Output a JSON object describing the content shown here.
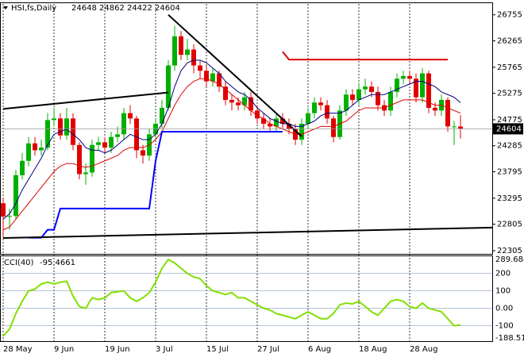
{
  "chart_data": {
    "type": "candlestick",
    "symbol": "HSI,fs,Daily",
    "header_ohlc": [
      24648,
      24862,
      24422,
      24604
    ],
    "categories": [
      "28 May",
      null,
      null,
      null,
      null,
      null,
      null,
      null,
      "9 Jun",
      null,
      null,
      null,
      null,
      null,
      null,
      null,
      "19 Jun",
      null,
      null,
      null,
      null,
      null,
      null,
      null,
      "3 Jul",
      null,
      null,
      null,
      null,
      null,
      null,
      null,
      "15 Jul",
      null,
      null,
      null,
      null,
      null,
      null,
      null,
      "27 Jul",
      null,
      null,
      null,
      null,
      null,
      null,
      null,
      "6 Aug",
      null,
      null,
      null,
      null,
      null,
      null,
      null,
      "18 Aug",
      null,
      null,
      null,
      null,
      null,
      null,
      null,
      "28 Aug",
      null,
      null,
      null,
      null,
      null,
      null,
      null,
      null
    ],
    "open": [
      23200,
      22950,
      22960,
      23730,
      24000,
      24330,
      24200,
      24250,
      24770,
      24800,
      24480,
      24800,
      24300,
      23750,
      23780,
      24300,
      24350,
      24250,
      24450,
      24500,
      24900,
      24800,
      24200,
      24100,
      24500,
      24700,
      25000,
      25800,
      26350,
      26000,
      26100,
      25800,
      25700,
      25500,
      25650,
      25400,
      25150,
      25100,
      25050,
      25200,
      24950,
      24800,
      24700,
      24650,
      24800,
      24700,
      24600,
      24400,
      24700,
      24900,
      25100,
      25050,
      24800,
      24450,
      24950,
      25250,
      25150,
      25350,
      25400,
      25300,
      25050,
      24950,
      25300,
      25550,
      25600,
      25550,
      25200,
      25650,
      25000,
      24950,
      25150,
      24650,
      24648
    ],
    "high": [
      23300,
      23100,
      23830,
      24150,
      24450,
      24450,
      24400,
      24900,
      25000,
      24900,
      25000,
      24900,
      24350,
      23950,
      24400,
      24450,
      24450,
      24550,
      24650,
      25000,
      25050,
      24850,
      24300,
      24600,
      24800,
      25150,
      25900,
      26550,
      26450,
      26300,
      26200,
      25900,
      25800,
      25750,
      25700,
      25500,
      25250,
      25200,
      25300,
      25300,
      25050,
      24900,
      24800,
      24900,
      24900,
      24800,
      24700,
      24800,
      25000,
      25200,
      25200,
      25150,
      24850,
      25050,
      25350,
      25350,
      25450,
      25550,
      25500,
      25400,
      25150,
      25400,
      25650,
      25700,
      25700,
      25650,
      25750,
      25700,
      25100,
      25250,
      25200,
      24750,
      24862
    ],
    "low": [
      22550,
      22700,
      22900,
      23650,
      23900,
      24100,
      24100,
      24200,
      24650,
      24400,
      24400,
      24200,
      23650,
      23550,
      23700,
      24200,
      24150,
      24150,
      24350,
      24400,
      24700,
      24050,
      23950,
      24000,
      24400,
      24600,
      24950,
      25700,
      25900,
      25900,
      25650,
      25550,
      25400,
      25400,
      25300,
      25050,
      24950,
      24950,
      24950,
      24850,
      24700,
      24600,
      24550,
      24550,
      24600,
      24500,
      24300,
      24300,
      24600,
      24800,
      24950,
      24700,
      24350,
      24400,
      24850,
      25050,
      25050,
      25250,
      25200,
      24950,
      24850,
      24850,
      25200,
      25450,
      25450,
      25100,
      25100,
      24900,
      24850,
      24850,
      24550,
      24300,
      24422
    ],
    "close": [
      22950,
      22960,
      23730,
      24000,
      24330,
      24200,
      24250,
      24770,
      24800,
      24480,
      24800,
      24300,
      23750,
      23780,
      24300,
      24350,
      24250,
      24450,
      24500,
      24900,
      24800,
      24200,
      24100,
      24500,
      24700,
      25000,
      25800,
      26350,
      26000,
      26100,
      25800,
      25700,
      25500,
      25650,
      25400,
      25150,
      25100,
      25050,
      25200,
      24950,
      24800,
      24700,
      24650,
      24800,
      24700,
      24600,
      24400,
      24700,
      24900,
      25100,
      25050,
      24800,
      24450,
      24950,
      25250,
      25150,
      25350,
      25400,
      25300,
      25050,
      24950,
      25300,
      25550,
      25600,
      25550,
      25200,
      25650,
      25000,
      24950,
      25150,
      24650,
      24650,
      24604
    ],
    "up_color": "#00b000",
    "down_color": "#e00000",
    "ylim": [
      22275,
      26960
    ],
    "yticks": [
      26755,
      26265,
      25765,
      25275,
      24775,
      24285,
      23795,
      23295,
      22805,
      22305
    ],
    "moving_averages": [
      {
        "color": "#000080",
        "values": [
          22900,
          23000,
          23200,
          23450,
          23650,
          23850,
          24050,
          24300,
          24500,
          24550,
          24600,
          24500,
          24400,
          24250,
          24200,
          24200,
          24150,
          24200,
          24300,
          24400,
          24500,
          24450,
          24400,
          24400,
          24500,
          24700,
          25000,
          25400,
          25700,
          25850,
          25900,
          25900,
          25850,
          25750,
          25650,
          25500,
          25400,
          25300,
          25250,
          25150,
          25000,
          24900,
          24800,
          24750,
          24700,
          24700,
          24650,
          24650,
          24700,
          24750,
          24850,
          24900,
          24900,
          24900,
          24950,
          25050,
          25150,
          25200,
          25250,
          25250,
          25250,
          25300,
          25350,
          25400,
          25450,
          25500,
          25500,
          25450,
          25400,
          25300,
          25250,
          25200,
          25100
        ]
      },
      {
        "color": "#e00000",
        "values": [
          22700,
          22750,
          22900,
          23050,
          23200,
          23350,
          23500,
          23650,
          23800,
          23900,
          23950,
          23950,
          23900,
          23880,
          23900,
          23950,
          24000,
          24050,
          24100,
          24200,
          24250,
          24250,
          24250,
          24300,
          24400,
          24550,
          24800,
          25050,
          25250,
          25400,
          25500,
          25550,
          25550,
          25500,
          25450,
          25350,
          25250,
          25150,
          25050,
          24950,
          24850,
          24800,
          24700,
          24650,
          24600,
          24550,
          24500,
          24500,
          24550,
          24600,
          24650,
          24650,
          24650,
          24700,
          24750,
          24850,
          24950,
          25000,
          25000,
          25000,
          25000,
          25050,
          25100,
          25150,
          25150,
          25150,
          25150,
          25100,
          25050,
          25050,
          25000,
          24950,
          24900
        ]
      }
    ],
    "stop_line": {
      "color": "#0000ff",
      "values": [
        null,
        null,
        null,
        null,
        22550,
        22550,
        22550,
        22700,
        22700,
        23100,
        23100,
        23100,
        23100,
        23100,
        23100,
        23100,
        23100,
        23100,
        23100,
        23100,
        23100,
        23100,
        23100,
        23100,
        24000,
        24550,
        24550,
        24550,
        24550,
        24550,
        24550,
        24550,
        24550,
        24550,
        24550,
        24550,
        24550,
        24550,
        24550,
        24550,
        24550,
        24550,
        24550,
        24550,
        24550,
        null,
        null,
        null,
        null,
        null,
        null,
        null,
        null,
        null,
        null,
        null,
        null,
        null,
        null,
        null,
        null,
        null,
        null,
        null,
        null,
        null,
        null,
        null,
        null,
        null,
        null,
        null,
        null
      ]
    },
    "trendlines": [
      {
        "color": "#000000",
        "points": [
          [
            0,
            24980
          ],
          [
            26,
            25290
          ]
        ]
      },
      {
        "color": "#000000",
        "points": [
          [
            26,
            26755
          ],
          [
            47,
            24460
          ]
        ]
      },
      {
        "color": "#e00000",
        "points": [
          [
            44,
            26060
          ],
          [
            45,
            25910
          ],
          [
            70,
            25910
          ]
        ]
      },
      {
        "color": "#000000",
        "points": [
          [
            0,
            22545
          ],
          [
            77,
            22740
          ]
        ]
      }
    ],
    "cci": {
      "name": "CCI(40)",
      "color": "#80e000",
      "values": [
        -160,
        -120,
        -30,
        40,
        100,
        110,
        140,
        150,
        140,
        150,
        155,
        70,
        10,
        0,
        60,
        50,
        60,
        90,
        95,
        100,
        60,
        40,
        60,
        90,
        150,
        230,
        280,
        260,
        230,
        200,
        180,
        170,
        130,
        100,
        90,
        80,
        90,
        60,
        60,
        40,
        20,
        0,
        -10,
        -30,
        -40,
        -50,
        -60,
        -40,
        -20,
        -40,
        -60,
        -60,
        -30,
        20,
        30,
        25,
        40,
        10,
        -20,
        -40,
        0,
        40,
        50,
        40,
        10,
        0,
        30,
        0,
        -10,
        -20,
        -60,
        -100,
        -95.4661
      ],
      "ylim": [
        -188.512,
        289.6848
      ],
      "yticks": [
        289.6848,
        200,
        100,
        {
          "value": 0,
          "label": "0.00"
        },
        -100,
        -188.512
      ]
    }
  }
}
